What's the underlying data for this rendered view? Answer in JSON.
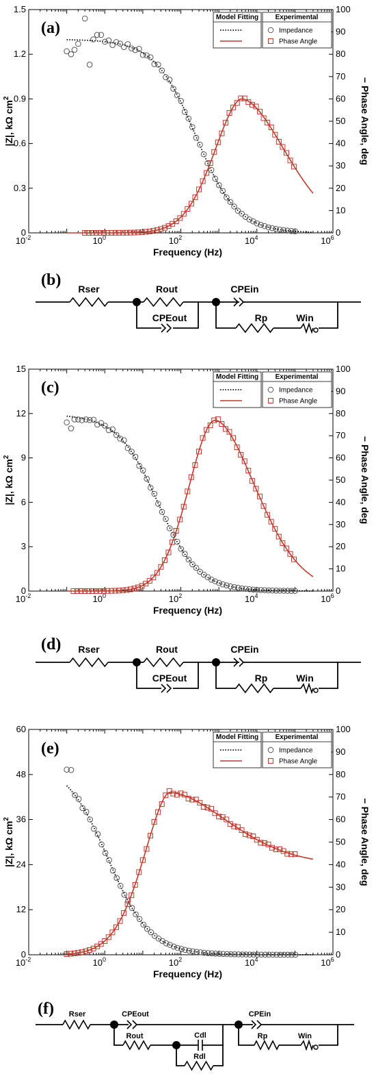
{
  "chart_data": [
    {
      "panel_label": "(a)",
      "type": "line+scatter",
      "xscale": "log",
      "xlim": [
        0.01,
        1000000
      ],
      "x_ticks": [
        "10-2",
        "100",
        "102",
        "104",
        "106"
      ],
      "ylim_left": [
        0,
        1.5
      ],
      "y_ticks_left": [
        "0",
        "0.3",
        "0.6",
        "0.9",
        "1.2",
        "1.5"
      ],
      "ylim_right": [
        0,
        100
      ],
      "y_ticks_right": [
        "0",
        "10",
        "20",
        "30",
        "40",
        "50",
        "60",
        "70",
        "80",
        "90",
        "100"
      ],
      "xlabel": "Frequency (Hz)",
      "ylabel_left": "|Z|, kΩ cm2",
      "ylabel_right": "− Phase Angle, deg",
      "legend": {
        "model_header": "Model Fitting",
        "exp_header": "Experimental",
        "items": [
          "Impedance",
          "Phase Angle"
        ]
      },
      "impedance_model": {
        "low": 1.3,
        "fc": 250,
        "n": 0.8,
        "floor": 0.0
      },
      "impedance_exp_low": [
        [
          0.1,
          1.22
        ],
        [
          0.13,
          1.2
        ],
        [
          0.16,
          1.23
        ],
        [
          0.2,
          1.27
        ],
        [
          0.3,
          1.44
        ],
        [
          0.4,
          1.13
        ],
        [
          0.5,
          1.3
        ],
        [
          0.63,
          1.33
        ],
        [
          0.8,
          1.33
        ]
      ],
      "phase_model": {
        "peak": 60,
        "center": 4000,
        "w": 1.05,
        "a": 1.8,
        "b": 1.0,
        "tail": 0
      },
      "x_exp_range": [
        0.3,
        100000
      ],
      "x_model_range": [
        0.1,
        300000
      ]
    },
    {
      "panel_label": "(c)",
      "type": "line+scatter",
      "xscale": "log",
      "xlim": [
        0.01,
        1000000
      ],
      "x_ticks": [
        "10-2",
        "100",
        "102",
        "104",
        "106"
      ],
      "ylim_left": [
        0,
        15
      ],
      "y_ticks_left": [
        "0",
        "3",
        "6",
        "9",
        "12",
        "15"
      ],
      "ylim_right": [
        0,
        100
      ],
      "y_ticks_right": [
        "0",
        "10",
        "20",
        "30",
        "40",
        "50",
        "60",
        "70",
        "80",
        "90",
        "100"
      ],
      "xlabel": "Frequency (Hz)",
      "ylabel_left": "|Z|, kΩ cm2",
      "ylabel_right": "− Phase Angle, deg",
      "legend": {
        "model_header": "Model Fitting",
        "exp_header": "Experimental",
        "items": [
          "Impedance",
          "Phase Angle"
        ]
      },
      "impedance_model": {
        "low": 11.95,
        "fc": 25,
        "n": 0.82,
        "floor": 0.0
      },
      "impedance_exp_low": [
        [
          0.1,
          11.4
        ],
        [
          0.13,
          11.0
        ],
        [
          0.16,
          11.6
        ],
        [
          0.2,
          11.6
        ],
        [
          0.25,
          11.55
        ],
        [
          0.32,
          11.6
        ]
      ],
      "phase_model": {
        "peak": 77,
        "center": 800,
        "w": 1.0,
        "a": 1.9,
        "b": 1.05,
        "tail": 0
      },
      "x_exp_range": [
        0.15,
        100000
      ],
      "x_model_range": [
        0.1,
        300000
      ]
    },
    {
      "panel_label": "(e)",
      "type": "line+scatter",
      "xscale": "log",
      "xlim": [
        0.01,
        1000000
      ],
      "x_ticks": [
        "10-2",
        "100",
        "102",
        "104",
        "106"
      ],
      "ylim_left": [
        0,
        60
      ],
      "y_ticks_left": [
        "0",
        "12",
        "24",
        "36",
        "48",
        "60"
      ],
      "ylim_right": [
        0,
        100
      ],
      "y_ticks_right": [
        "0",
        "10",
        "20",
        "30",
        "40",
        "50",
        "60",
        "70",
        "80",
        "90",
        "100"
      ],
      "xlabel": "Frequency (Hz)",
      "ylabel_left": "|Z|, kΩ cm2",
      "ylabel_right": "− Phase Angle, deg",
      "legend": {
        "model_header": "Model Fitting",
        "exp_header": "Experimental",
        "items": [
          "Impedance",
          "Phase Angle"
        ]
      },
      "impedance_model": {
        "low": 51.5,
        "fc": 1.2,
        "n": 0.78,
        "floor": 0.0
      },
      "impedance_exp_low": [
        [
          0.1,
          49.3
        ],
        [
          0.13,
          49.2
        ]
      ],
      "phase_model": {
        "peak": 72,
        "center": 50,
        "w": 1.0,
        "a": 1.7,
        "b": 0.55,
        "tail": 40
      },
      "x_exp_range": [
        0.1,
        100000
      ],
      "x_model_range": [
        0.1,
        300000
      ]
    }
  ],
  "circuits": {
    "b": {
      "panel_label": "(b)",
      "labels": {
        "rser": "Rser",
        "rout": "Rout",
        "cpeout": "CPEout",
        "cpein": "CPEin",
        "rp": "Rp",
        "win": "Win"
      }
    },
    "d": {
      "panel_label": "(d)",
      "labels": {
        "rser": "Rser",
        "rout": "Rout",
        "cpeout": "CPEout",
        "cpein": "CPEin",
        "rp": "Rp",
        "win": "Win"
      }
    },
    "f": {
      "panel_label": "(f)",
      "labels": {
        "rser": "Rser",
        "cpeout": "CPEout",
        "rout": "Rout",
        "cdl": "Cdl",
        "rdl": "Rdl",
        "cpein": "CPEin",
        "rp": "Rp",
        "win": "Win"
      }
    }
  },
  "colors": {
    "phase": "#c0392b",
    "impedance": "#555555",
    "model_impedance": "#000000"
  }
}
